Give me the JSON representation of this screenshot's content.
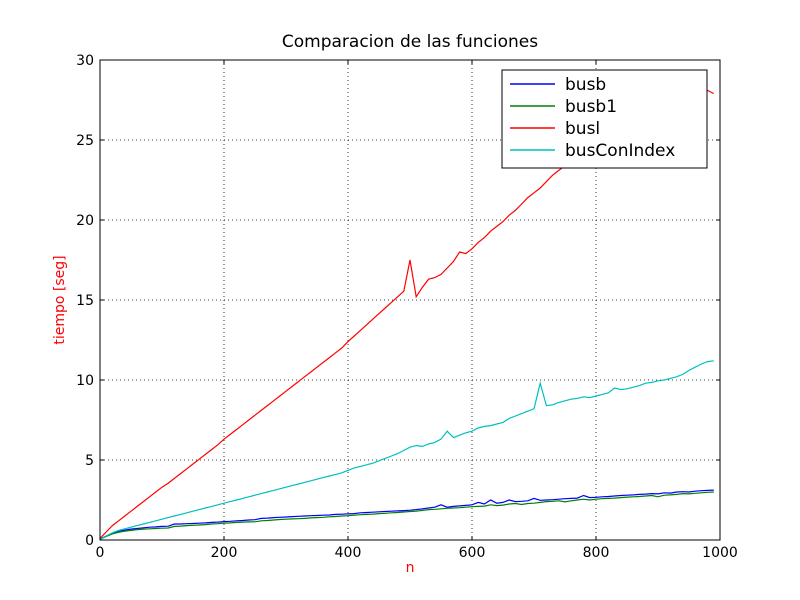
{
  "chart_data": {
    "type": "line",
    "title": "Comparacion de las funciones",
    "xlabel": "n",
    "ylabel": "tiempo [seg]",
    "xlabel_color": "#ff0000",
    "ylabel_color": "#ff0000",
    "xlim": [
      0,
      1000
    ],
    "ylim": [
      0,
      30
    ],
    "xticks": [
      "0",
      "200",
      "400",
      "600",
      "800",
      "1000"
    ],
    "yticks": [
      "0",
      "5",
      "10",
      "15",
      "20",
      "25",
      "30"
    ],
    "grid": true,
    "legend_position": "upper right",
    "series": [
      {
        "name": "busb",
        "color": "#0000ff",
        "x": [
          0,
          10,
          20,
          30,
          40,
          50,
          60,
          70,
          80,
          90,
          100,
          110,
          120,
          130,
          140,
          150,
          160,
          170,
          180,
          190,
          200,
          210,
          220,
          230,
          240,
          250,
          260,
          270,
          280,
          290,
          300,
          310,
          320,
          330,
          340,
          350,
          360,
          370,
          380,
          390,
          400,
          410,
          420,
          430,
          440,
          450,
          460,
          470,
          480,
          490,
          500,
          510,
          520,
          530,
          540,
          550,
          560,
          570,
          580,
          590,
          600,
          610,
          620,
          630,
          640,
          650,
          660,
          670,
          680,
          690,
          700,
          710,
          720,
          730,
          740,
          750,
          760,
          770,
          780,
          790,
          800,
          810,
          820,
          830,
          840,
          850,
          860,
          870,
          880,
          890,
          900,
          910,
          920,
          930,
          940,
          950,
          960,
          970,
          980,
          990
        ],
        "y": [
          0.05,
          0.25,
          0.42,
          0.55,
          0.62,
          0.68,
          0.72,
          0.76,
          0.8,
          0.82,
          0.85,
          0.86,
          1.0,
          1.0,
          1.02,
          1.03,
          1.05,
          1.07,
          1.1,
          1.12,
          1.15,
          1.17,
          1.2,
          1.22,
          1.25,
          1.27,
          1.35,
          1.37,
          1.4,
          1.42,
          1.44,
          1.46,
          1.48,
          1.5,
          1.52,
          1.53,
          1.55,
          1.56,
          1.6,
          1.61,
          1.63,
          1.65,
          1.7,
          1.72,
          1.74,
          1.76,
          1.78,
          1.8,
          1.82,
          1.84,
          1.86,
          1.9,
          1.95,
          2.0,
          2.05,
          2.2,
          2.05,
          2.1,
          2.13,
          2.16,
          2.2,
          2.35,
          2.25,
          2.5,
          2.3,
          2.35,
          2.5,
          2.4,
          2.42,
          2.45,
          2.6,
          2.48,
          2.5,
          2.52,
          2.55,
          2.58,
          2.6,
          2.62,
          2.78,
          2.65,
          2.67,
          2.7,
          2.72,
          2.75,
          2.78,
          2.8,
          2.82,
          2.85,
          2.87,
          2.9,
          2.88,
          2.95,
          2.93,
          3.0,
          3.02,
          3.0,
          3.05,
          3.08,
          3.1,
          3.12
        ]
      },
      {
        "name": "busb1",
        "color": "#008000",
        "x": [
          0,
          10,
          20,
          30,
          40,
          50,
          60,
          70,
          80,
          90,
          100,
          110,
          120,
          130,
          140,
          150,
          160,
          170,
          180,
          190,
          200,
          210,
          220,
          230,
          240,
          250,
          260,
          270,
          280,
          290,
          300,
          310,
          320,
          330,
          340,
          350,
          360,
          370,
          380,
          390,
          400,
          410,
          420,
          430,
          440,
          450,
          460,
          470,
          480,
          490,
          500,
          510,
          520,
          530,
          540,
          550,
          560,
          570,
          580,
          590,
          600,
          610,
          620,
          630,
          640,
          650,
          660,
          670,
          680,
          690,
          700,
          710,
          720,
          730,
          740,
          750,
          760,
          770,
          780,
          790,
          800,
          810,
          820,
          830,
          840,
          850,
          860,
          870,
          880,
          890,
          900,
          910,
          920,
          930,
          940,
          950,
          960,
          970,
          980,
          990
        ],
        "y": [
          0.05,
          0.22,
          0.38,
          0.48,
          0.55,
          0.6,
          0.65,
          0.68,
          0.7,
          0.72,
          0.74,
          0.75,
          0.85,
          0.87,
          0.9,
          0.92,
          0.94,
          0.96,
          1.0,
          1.02,
          1.05,
          1.07,
          1.1,
          1.12,
          1.13,
          1.14,
          1.2,
          1.22,
          1.25,
          1.28,
          1.3,
          1.32,
          1.33,
          1.35,
          1.38,
          1.4,
          1.42,
          1.45,
          1.47,
          1.5,
          1.52,
          1.55,
          1.58,
          1.6,
          1.62,
          1.65,
          1.67,
          1.7,
          1.72,
          1.75,
          1.78,
          1.8,
          1.85,
          1.9,
          1.92,
          1.95,
          1.98,
          2.0,
          2.02,
          2.05,
          2.08,
          2.1,
          2.12,
          2.2,
          2.15,
          2.18,
          2.25,
          2.28,
          2.22,
          2.28,
          2.3,
          2.35,
          2.4,
          2.42,
          2.45,
          2.38,
          2.45,
          2.5,
          2.55,
          2.5,
          2.55,
          2.58,
          2.6,
          2.62,
          2.65,
          2.68,
          2.7,
          2.72,
          2.75,
          2.78,
          2.7,
          2.8,
          2.82,
          2.85,
          2.9,
          2.88,
          2.92,
          2.95,
          2.98,
          3.0
        ]
      },
      {
        "name": "busl",
        "color": "#ff0000",
        "x": [
          0,
          10,
          20,
          30,
          40,
          50,
          60,
          70,
          80,
          90,
          100,
          110,
          120,
          130,
          140,
          150,
          160,
          170,
          180,
          190,
          200,
          210,
          220,
          230,
          240,
          250,
          260,
          270,
          280,
          290,
          300,
          310,
          320,
          330,
          340,
          350,
          360,
          370,
          380,
          390,
          400,
          410,
          420,
          430,
          440,
          450,
          460,
          470,
          480,
          490,
          500,
          510,
          520,
          530,
          540,
          550,
          560,
          570,
          580,
          590,
          600,
          610,
          620,
          630,
          640,
          650,
          660,
          670,
          680,
          690,
          700,
          710,
          720,
          730,
          740,
          750,
          760,
          770,
          780,
          790,
          800,
          810,
          820,
          830,
          840,
          850,
          860,
          870,
          880,
          890,
          900,
          910,
          920,
          930,
          940,
          950,
          960,
          970,
          980,
          990
        ],
        "y": [
          0.1,
          0.5,
          0.9,
          1.2,
          1.5,
          1.8,
          2.1,
          2.4,
          2.7,
          3.0,
          3.3,
          3.55,
          3.85,
          4.15,
          4.45,
          4.75,
          5.05,
          5.35,
          5.65,
          5.95,
          6.3,
          6.6,
          6.9,
          7.2,
          7.5,
          7.8,
          8.1,
          8.4,
          8.7,
          9.0,
          9.3,
          9.6,
          9.9,
          10.2,
          10.5,
          10.8,
          11.1,
          11.4,
          11.7,
          12.0,
          12.4,
          12.75,
          13.1,
          13.45,
          13.8,
          14.15,
          14.5,
          14.85,
          15.2,
          15.55,
          17.5,
          15.2,
          15.8,
          16.3,
          16.4,
          16.6,
          17.0,
          17.4,
          18.0,
          17.9,
          18.2,
          18.6,
          18.9,
          19.3,
          19.6,
          19.9,
          20.3,
          20.6,
          21.0,
          21.4,
          21.7,
          22.0,
          22.4,
          22.8,
          23.1,
          23.4,
          23.8,
          24.1,
          24.5,
          24.2,
          24.6,
          24.9,
          25.2,
          25.5,
          25.8,
          26.1,
          26.3,
          26.6,
          26.9,
          27.1,
          27.3,
          27.5,
          27.7,
          27.9,
          28.1,
          28.2,
          28.4,
          28.3,
          28.1,
          27.9
        ]
      },
      {
        "name": "busConIndex",
        "color": "#00bfbf",
        "x": [
          0,
          10,
          20,
          30,
          40,
          50,
          60,
          70,
          80,
          90,
          100,
          110,
          120,
          130,
          140,
          150,
          160,
          170,
          180,
          190,
          200,
          210,
          220,
          230,
          240,
          250,
          260,
          270,
          280,
          290,
          300,
          310,
          320,
          330,
          340,
          350,
          360,
          370,
          380,
          390,
          400,
          410,
          420,
          430,
          440,
          450,
          460,
          470,
          480,
          490,
          500,
          510,
          520,
          530,
          540,
          550,
          560,
          570,
          580,
          590,
          600,
          610,
          620,
          630,
          640,
          650,
          660,
          670,
          680,
          690,
          700,
          710,
          720,
          730,
          740,
          750,
          760,
          770,
          780,
          790,
          800,
          810,
          820,
          830,
          840,
          850,
          860,
          870,
          880,
          890,
          900,
          910,
          920,
          930,
          940,
          950,
          960,
          970,
          980,
          990
        ],
        "y": [
          0.05,
          0.25,
          0.45,
          0.6,
          0.7,
          0.8,
          0.9,
          1.0,
          1.1,
          1.2,
          1.3,
          1.4,
          1.5,
          1.6,
          1.7,
          1.8,
          1.9,
          2.0,
          2.1,
          2.2,
          2.3,
          2.4,
          2.5,
          2.6,
          2.7,
          2.8,
          2.9,
          3.0,
          3.1,
          3.2,
          3.3,
          3.4,
          3.5,
          3.6,
          3.7,
          3.8,
          3.9,
          4.0,
          4.1,
          4.2,
          4.35,
          4.5,
          4.6,
          4.7,
          4.8,
          4.95,
          5.1,
          5.25,
          5.4,
          5.6,
          5.8,
          5.9,
          5.85,
          6.0,
          6.1,
          6.3,
          6.8,
          6.4,
          6.55,
          6.7,
          6.8,
          7.0,
          7.1,
          7.15,
          7.25,
          7.35,
          7.6,
          7.75,
          7.9,
          8.05,
          8.2,
          9.8,
          8.4,
          8.45,
          8.6,
          8.7,
          8.8,
          8.85,
          8.95,
          8.9,
          9.0,
          9.1,
          9.2,
          9.5,
          9.4,
          9.45,
          9.55,
          9.65,
          9.8,
          9.85,
          9.95,
          10.0,
          10.1,
          10.2,
          10.35,
          10.6,
          10.8,
          11.0,
          11.15,
          11.2
        ]
      }
    ]
  }
}
